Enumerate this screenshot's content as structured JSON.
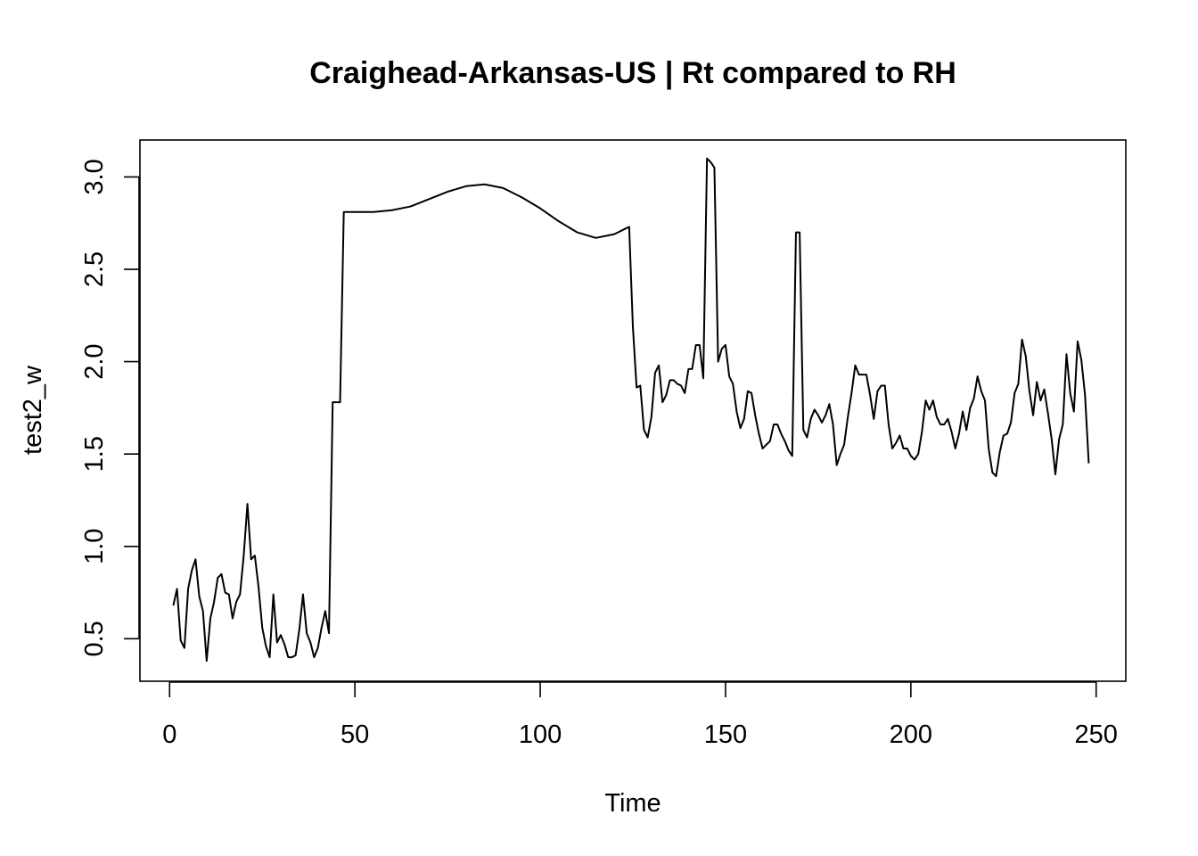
{
  "chart_data": {
    "type": "line",
    "title": "Craighead-Arkansas-US | Rt compared to RH",
    "xlabel": "Time",
    "ylabel": "test2_w",
    "xlim": [
      -8,
      258
    ],
    "ylim": [
      0.27,
      3.2
    ],
    "x_ticks": [
      0,
      50,
      100,
      150,
      200,
      250
    ],
    "y_ticks": [
      0.5,
      1.0,
      1.5,
      2.0,
      2.5,
      3.0
    ],
    "x_tick_labels": [
      "0",
      "50",
      "100",
      "150",
      "200",
      "250"
    ],
    "y_tick_labels": [
      "0.5",
      "1.0",
      "1.5",
      "2.0",
      "2.5",
      "3.0"
    ],
    "grid": false,
    "line_color": "#000000",
    "series": [
      {
        "x": [
          1,
          2,
          3,
          4,
          5,
          6,
          7,
          8,
          9,
          10,
          11,
          12,
          13,
          14,
          15,
          16,
          17,
          18,
          19,
          20,
          21,
          22,
          23,
          24,
          25,
          26,
          27,
          28,
          29,
          30,
          31,
          32,
          33,
          34,
          35,
          36,
          37,
          38,
          39,
          40,
          41,
          42,
          43,
          44,
          45,
          46,
          47,
          48,
          50,
          55,
          60,
          65,
          70,
          75,
          80,
          85,
          90,
          95,
          100,
          105,
          110,
          115,
          120,
          123,
          124,
          125,
          126,
          127,
          128,
          129,
          130,
          131,
          132,
          133,
          134,
          135,
          136,
          137,
          138,
          139,
          140,
          141,
          142,
          143,
          144,
          145,
          146,
          147,
          148,
          149,
          150,
          151,
          152,
          153,
          154,
          155,
          156,
          157,
          158,
          159,
          160,
          161,
          162,
          163,
          164,
          165,
          166,
          167,
          168,
          169,
          170,
          171,
          172,
          173,
          174,
          175,
          176,
          177,
          178,
          179,
          180,
          181,
          182,
          183,
          184,
          185,
          186,
          187,
          188,
          189,
          190,
          191,
          192,
          193,
          194,
          195,
          196,
          197,
          198,
          199,
          200,
          201,
          202,
          203,
          204,
          205,
          206,
          207,
          208,
          209,
          210,
          211,
          212,
          213,
          214,
          215,
          216,
          217,
          218,
          219,
          220,
          221,
          222,
          223,
          224,
          225,
          226,
          227,
          228,
          229,
          230,
          231,
          232,
          233,
          234,
          235,
          236,
          237,
          238,
          239,
          240,
          241,
          242,
          243,
          244,
          245,
          246,
          247,
          248
        ],
        "y": [
          0.68,
          0.77,
          0.49,
          0.45,
          0.77,
          0.87,
          0.93,
          0.73,
          0.65,
          0.38,
          0.61,
          0.7,
          0.83,
          0.85,
          0.75,
          0.74,
          0.61,
          0.7,
          0.74,
          0.95,
          1.23,
          0.93,
          0.95,
          0.78,
          0.56,
          0.46,
          0.4,
          0.74,
          0.48,
          0.52,
          0.47,
          0.4,
          0.4,
          0.41,
          0.55,
          0.74,
          0.53,
          0.48,
          0.4,
          0.45,
          0.56,
          0.65,
          0.53,
          1.78,
          1.78,
          1.78,
          2.81,
          2.81,
          2.81,
          2.81,
          2.82,
          2.84,
          2.88,
          2.92,
          2.95,
          2.96,
          2.94,
          2.89,
          2.83,
          2.76,
          2.7,
          2.67,
          2.69,
          2.72,
          2.73,
          2.19,
          1.86,
          1.87,
          1.63,
          1.59,
          1.7,
          1.94,
          1.98,
          1.78,
          1.82,
          1.9,
          1.9,
          1.88,
          1.87,
          1.83,
          1.96,
          1.96,
          2.09,
          2.09,
          1.91,
          3.1,
          3.08,
          3.05,
          2.0,
          2.07,
          2.09,
          1.92,
          1.88,
          1.73,
          1.64,
          1.69,
          1.84,
          1.83,
          1.71,
          1.61,
          1.53,
          1.55,
          1.57,
          1.66,
          1.66,
          1.61,
          1.57,
          1.52,
          1.49,
          2.7,
          2.7,
          1.63,
          1.59,
          1.69,
          1.74,
          1.71,
          1.67,
          1.71,
          1.77,
          1.66,
          1.44,
          1.5,
          1.55,
          1.7,
          1.83,
          1.98,
          1.93,
          1.93,
          1.93,
          1.82,
          1.69,
          1.84,
          1.87,
          1.87,
          1.66,
          1.53,
          1.56,
          1.6,
          1.53,
          1.53,
          1.49,
          1.47,
          1.5,
          1.62,
          1.79,
          1.74,
          1.79,
          1.7,
          1.66,
          1.66,
          1.69,
          1.62,
          1.53,
          1.61,
          1.73,
          1.63,
          1.75,
          1.8,
          1.92,
          1.84,
          1.79,
          1.53,
          1.4,
          1.38,
          1.51,
          1.6,
          1.61,
          1.67,
          1.83,
          1.88,
          2.12,
          2.03,
          1.84,
          1.71,
          1.89,
          1.79,
          1.85,
          1.72,
          1.58,
          1.39,
          1.58,
          1.66,
          2.04,
          1.83,
          1.73,
          2.11,
          2.01,
          1.82,
          1.45
        ]
      }
    ]
  }
}
